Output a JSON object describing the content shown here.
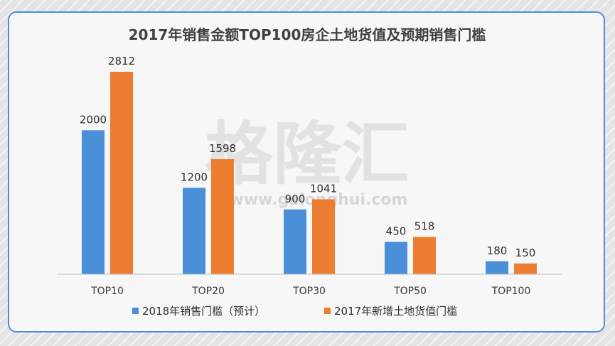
{
  "chart_data": {
    "type": "bar",
    "title": "2017年销售金额TOP100房企土地货值及预期销售门槛",
    "categories": [
      "TOP10",
      "TOP20",
      "TOP30",
      "TOP50",
      "TOP100"
    ],
    "series": [
      {
        "name": "2018年销售门槛（预计）",
        "values": [
          2000,
          1200,
          900,
          450,
          180
        ],
        "color": "#4a90d9"
      },
      {
        "name": "2017年新增土地货值门槛",
        "values": [
          2812,
          1598,
          1041,
          518,
          150
        ],
        "color": "#ed7d31"
      }
    ],
    "ylim": [
      0,
      3000
    ],
    "grid": false,
    "legend_position": "bottom"
  },
  "watermark": {
    "text": "格隆汇",
    "url": "www.gelonghui.com"
  }
}
